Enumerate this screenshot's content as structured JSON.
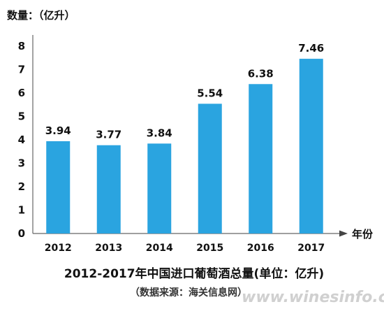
{
  "chart_data": {
    "type": "bar",
    "categories": [
      "2012",
      "2013",
      "2014",
      "2015",
      "2016",
      "2017"
    ],
    "values": [
      3.94,
      3.77,
      3.84,
      5.54,
      6.38,
      7.46
    ],
    "data_labels": [
      "3.94",
      "3.77",
      "3.84",
      "5.54",
      "6.38",
      "7.46"
    ],
    "title": "2012-2017年中国进口葡萄酒总量(单位：亿升)",
    "subtitle": "（数据来源：海关信息网）",
    "ylabel": "数量：（亿升）",
    "xlabel": "年份",
    "ylim": [
      0,
      8
    ],
    "yticks": [
      "0",
      "1",
      "2",
      "3",
      "4",
      "5",
      "6",
      "7",
      "8"
    ],
    "grid": false,
    "bar_color": "#2aa4e0",
    "axis_color": "#666666"
  },
  "watermark": "www.winesinfo.com"
}
